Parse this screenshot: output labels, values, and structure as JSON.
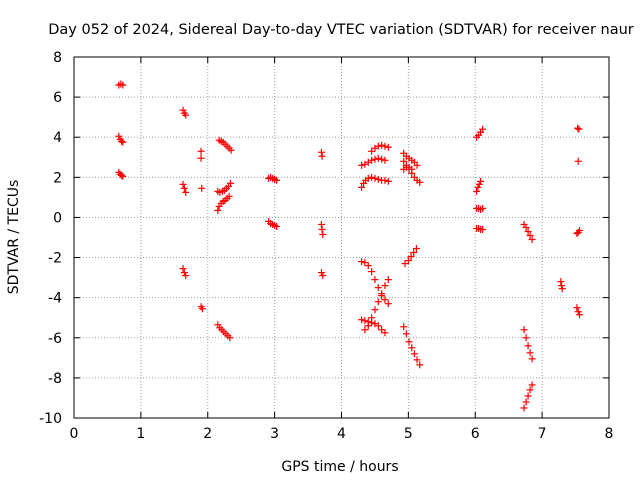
{
  "chart_data": {
    "type": "scatter",
    "title": "Day 052 of 2024, Sidereal Day-to-day VTEC variation (SDTVAR) for receiver naur",
    "xlabel": "GPS time / hours",
    "ylabel": "SDTVAR / TECUs",
    "xlim": [
      0,
      8
    ],
    "ylim": [
      -10,
      8
    ],
    "x_ticks": [
      "0",
      "1",
      "2",
      "3",
      "4",
      "5",
      "6",
      "7",
      "8"
    ],
    "y_ticks": [
      "-10",
      "-8",
      "-6",
      "-4",
      "-2",
      "0",
      "2",
      "4",
      "6",
      "8"
    ],
    "grid": true,
    "marker": "+",
    "color": "#ff0000",
    "points": [
      [
        0.67,
        6.6
      ],
      [
        0.7,
        6.65
      ],
      [
        0.73,
        6.6
      ],
      [
        0.67,
        4.05
      ],
      [
        0.69,
        3.9
      ],
      [
        0.71,
        3.8
      ],
      [
        0.73,
        3.75
      ],
      [
        0.67,
        2.25
      ],
      [
        0.69,
        2.15
      ],
      [
        0.71,
        2.1
      ],
      [
        0.73,
        2.05
      ],
      [
        1.63,
        5.35
      ],
      [
        1.65,
        5.2
      ],
      [
        1.67,
        5.1
      ],
      [
        1.63,
        1.65
      ],
      [
        1.65,
        1.45
      ],
      [
        1.67,
        1.25
      ],
      [
        1.63,
        -2.55
      ],
      [
        1.65,
        -2.75
      ],
      [
        1.67,
        -2.9
      ],
      [
        1.9,
        3.3
      ],
      [
        1.9,
        2.95
      ],
      [
        1.91,
        1.45
      ],
      [
        1.9,
        -4.45
      ],
      [
        1.92,
        -4.55
      ],
      [
        2.17,
        3.85
      ],
      [
        2.2,
        3.8
      ],
      [
        2.23,
        3.75
      ],
      [
        2.26,
        3.65
      ],
      [
        2.29,
        3.55
      ],
      [
        2.32,
        3.45
      ],
      [
        2.35,
        3.35
      ],
      [
        2.15,
        1.3
      ],
      [
        2.18,
        1.25
      ],
      [
        2.22,
        1.3
      ],
      [
        2.25,
        1.35
      ],
      [
        2.28,
        1.45
      ],
      [
        2.31,
        1.55
      ],
      [
        2.34,
        1.7
      ],
      [
        2.15,
        0.35
      ],
      [
        2.17,
        0.55
      ],
      [
        2.2,
        0.7
      ],
      [
        2.23,
        0.8
      ],
      [
        2.26,
        0.85
      ],
      [
        2.29,
        0.95
      ],
      [
        2.32,
        1.05
      ],
      [
        2.15,
        -5.35
      ],
      [
        2.18,
        -5.5
      ],
      [
        2.21,
        -5.6
      ],
      [
        2.24,
        -5.7
      ],
      [
        2.27,
        -5.8
      ],
      [
        2.3,
        -5.9
      ],
      [
        2.33,
        -6.0
      ],
      [
        2.91,
        1.95
      ],
      [
        2.94,
        2.0
      ],
      [
        2.97,
        1.95
      ],
      [
        3.0,
        1.9
      ],
      [
        3.03,
        1.85
      ],
      [
        2.91,
        -0.2
      ],
      [
        2.94,
        -0.3
      ],
      [
        2.97,
        -0.35
      ],
      [
        3.0,
        -0.4
      ],
      [
        3.03,
        -0.45
      ],
      [
        3.7,
        3.25
      ],
      [
        3.71,
        3.05
      ],
      [
        3.7,
        -0.35
      ],
      [
        3.71,
        -0.6
      ],
      [
        3.72,
        -0.85
      ],
      [
        3.7,
        -2.75
      ],
      [
        3.72,
        -2.9
      ],
      [
        4.3,
        2.6
      ],
      [
        4.35,
        2.65
      ],
      [
        4.4,
        2.75
      ],
      [
        4.45,
        2.85
      ],
      [
        4.5,
        2.9
      ],
      [
        4.55,
        2.95
      ],
      [
        4.6,
        2.9
      ],
      [
        4.65,
        2.85
      ],
      [
        4.45,
        3.3
      ],
      [
        4.5,
        3.45
      ],
      [
        4.55,
        3.55
      ],
      [
        4.6,
        3.6
      ],
      [
        4.65,
        3.55
      ],
      [
        4.7,
        3.5
      ],
      [
        4.3,
        1.5
      ],
      [
        4.33,
        1.7
      ],
      [
        4.36,
        1.85
      ],
      [
        4.4,
        1.95
      ],
      [
        4.45,
        2.0
      ],
      [
        4.5,
        1.95
      ],
      [
        4.55,
        1.9
      ],
      [
        4.6,
        1.85
      ],
      [
        4.65,
        1.85
      ],
      [
        4.7,
        1.8
      ],
      [
        4.3,
        -2.2
      ],
      [
        4.35,
        -2.25
      ],
      [
        4.4,
        -2.4
      ],
      [
        4.45,
        -2.7
      ],
      [
        4.5,
        -3.1
      ],
      [
        4.55,
        -3.5
      ],
      [
        4.6,
        -3.9
      ],
      [
        4.65,
        -4.1
      ],
      [
        4.7,
        -4.3
      ],
      [
        4.3,
        -5.1
      ],
      [
        4.35,
        -5.15
      ],
      [
        4.4,
        -5.2
      ],
      [
        4.45,
        -5.25
      ],
      [
        4.5,
        -5.3
      ],
      [
        4.55,
        -5.4
      ],
      [
        4.6,
        -5.6
      ],
      [
        4.65,
        -5.75
      ],
      [
        4.35,
        -5.6
      ],
      [
        4.4,
        -5.4
      ],
      [
        4.45,
        -5.0
      ],
      [
        4.5,
        -4.6
      ],
      [
        4.55,
        -4.2
      ],
      [
        4.6,
        -3.8
      ],
      [
        4.65,
        -3.4
      ],
      [
        4.7,
        -3.1
      ],
      [
        4.93,
        3.2
      ],
      [
        4.97,
        3.05
      ],
      [
        5.01,
        2.95
      ],
      [
        5.05,
        2.85
      ],
      [
        5.09,
        2.75
      ],
      [
        5.13,
        2.6
      ],
      [
        4.93,
        2.8
      ],
      [
        4.97,
        2.6
      ],
      [
        5.01,
        2.4
      ],
      [
        5.05,
        2.2
      ],
      [
        5.09,
        2.0
      ],
      [
        5.13,
        1.85
      ],
      [
        5.17,
        1.75
      ],
      [
        4.93,
        2.4
      ],
      [
        4.97,
        2.5
      ],
      [
        5.01,
        2.5
      ],
      [
        5.05,
        2.4
      ],
      [
        4.95,
        -2.3
      ],
      [
        5.0,
        -2.15
      ],
      [
        5.04,
        -1.95
      ],
      [
        5.08,
        -1.75
      ],
      [
        5.12,
        -1.55
      ],
      [
        4.93,
        -5.45
      ],
      [
        4.97,
        -5.8
      ],
      [
        5.01,
        -6.2
      ],
      [
        5.05,
        -6.5
      ],
      [
        5.09,
        -6.8
      ],
      [
        5.13,
        -7.1
      ],
      [
        5.17,
        -7.35
      ],
      [
        6.02,
        4.0
      ],
      [
        6.05,
        4.1
      ],
      [
        6.08,
        4.25
      ],
      [
        6.11,
        4.4
      ],
      [
        6.02,
        1.3
      ],
      [
        6.04,
        1.5
      ],
      [
        6.06,
        1.65
      ],
      [
        6.08,
        1.8
      ],
      [
        6.02,
        0.45
      ],
      [
        6.05,
        0.45
      ],
      [
        6.08,
        0.4
      ],
      [
        6.11,
        0.45
      ],
      [
        6.02,
        -0.55
      ],
      [
        6.05,
        -0.55
      ],
      [
        6.08,
        -0.6
      ],
      [
        6.11,
        -0.6
      ],
      [
        6.73,
        -0.35
      ],
      [
        6.76,
        -0.5
      ],
      [
        6.79,
        -0.7
      ],
      [
        6.82,
        -0.9
      ],
      [
        6.85,
        -1.1
      ],
      [
        6.73,
        -5.6
      ],
      [
        6.76,
        -6.0
      ],
      [
        6.79,
        -6.4
      ],
      [
        6.82,
        -6.75
      ],
      [
        6.85,
        -7.05
      ],
      [
        6.73,
        -9.5
      ],
      [
        6.76,
        -9.2
      ],
      [
        6.79,
        -8.9
      ],
      [
        6.82,
        -8.6
      ],
      [
        6.85,
        -8.35
      ],
      [
        7.28,
        -3.2
      ],
      [
        7.29,
        -3.4
      ],
      [
        7.3,
        -3.55
      ],
      [
        7.53,
        4.45
      ],
      [
        7.55,
        4.4
      ],
      [
        7.54,
        2.8
      ],
      [
        7.52,
        -0.8
      ],
      [
        7.54,
        -0.75
      ],
      [
        7.56,
        -0.65
      ],
      [
        7.52,
        -4.5
      ],
      [
        7.54,
        -4.7
      ],
      [
        7.56,
        -4.85
      ]
    ]
  }
}
